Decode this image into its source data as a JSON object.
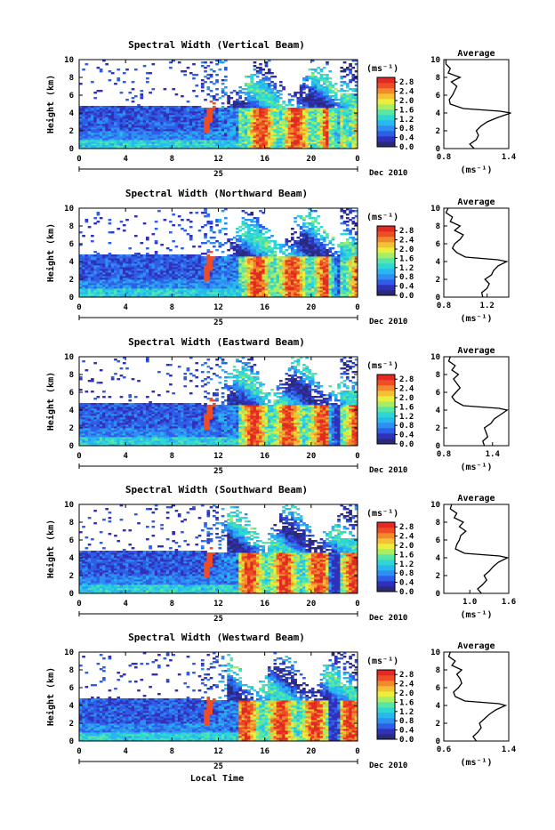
{
  "figure": {
    "colors": {
      "background": "#ffffff",
      "missing": "#ffffff",
      "colorbar": [
        "#2a2a7a",
        "#3030b8",
        "#2e5ee8",
        "#2f8ef2",
        "#28b7ee",
        "#2fd7d4",
        "#58e6a7",
        "#a7ee64",
        "#e8ef3c",
        "#f4c135",
        "#f28a2c",
        "#ee4d26",
        "#e02a22"
      ]
    },
    "xlabel": "Local Time",
    "date_suffix": "Dec 2010",
    "day_label": "25",
    "units_label": "(ms⁻¹)",
    "average_title": "Average",
    "average_xlabel": "(ms⁻¹)"
  },
  "chart_data": [
    {
      "type": "heatmap",
      "beam": "vertical",
      "title": "Spectral Width (Vertical Beam)",
      "ylabel": "Height (km)",
      "xlim": [
        0,
        24
      ],
      "ylim": [
        0,
        10
      ],
      "x_ticks": [
        "0",
        "4",
        "8",
        "12",
        "16",
        "20",
        "0"
      ],
      "y_ticks": [
        "0",
        "2",
        "4",
        "6",
        "8",
        "10"
      ],
      "colorbar_ticks": [
        "0.0",
        "0.4",
        "0.8",
        "1.2",
        "1.6",
        "2.0",
        "2.4",
        "2.8"
      ],
      "colorbar_range": [
        0,
        3.0
      ],
      "average_profile": {
        "title": "Average",
        "xlabel": "(ms⁻¹)",
        "xlim": [
          0.8,
          1.4
        ],
        "x_ticks": [
          "0.8",
          "1.4"
        ],
        "height_km": [
          0,
          0.5,
          1,
          1.5,
          2,
          2.5,
          3,
          3.5,
          4,
          4.2,
          4.5,
          5,
          5.5,
          6,
          6.5,
          7,
          7.5,
          8,
          8.5,
          9,
          9.5,
          10
        ],
        "value": [
          1.08,
          1.04,
          1.1,
          1.12,
          1.1,
          1.14,
          1.2,
          1.3,
          1.42,
          1.32,
          0.98,
          0.86,
          0.85,
          0.88,
          0.9,
          0.92,
          0.87,
          0.95,
          0.84,
          0.86,
          0.82,
          0.82
        ]
      }
    },
    {
      "type": "heatmap",
      "beam": "northward",
      "title": "Spectral Width (Northward Beam)",
      "ylabel": "Height (km)",
      "xlim": [
        0,
        24
      ],
      "ylim": [
        0,
        10
      ],
      "x_ticks": [
        "0",
        "4",
        "8",
        "12",
        "16",
        "20",
        "0"
      ],
      "y_ticks": [
        "0",
        "2",
        "4",
        "6",
        "8",
        "10"
      ],
      "colorbar_ticks": [
        "0.0",
        "0.4",
        "0.8",
        "1.2",
        "1.6",
        "2.0",
        "2.4",
        "2.8"
      ],
      "colorbar_range": [
        0,
        3.0
      ],
      "average_profile": {
        "title": "Average",
        "xlabel": "(ms⁻¹)",
        "xlim": [
          0.8,
          1.4
        ],
        "x_ticks": [
          "0.8",
          "1.2"
        ],
        "height_km": [
          0,
          0.5,
          1,
          1.5,
          2,
          2.5,
          3,
          3.5,
          4,
          4.2,
          4.5,
          5,
          5.5,
          6,
          6.5,
          7,
          7.5,
          8,
          8.5,
          9,
          9.5,
          10
        ],
        "value": [
          1.16,
          1.15,
          1.2,
          1.22,
          1.18,
          1.24,
          1.26,
          1.3,
          1.38,
          1.3,
          1.0,
          0.92,
          0.88,
          0.9,
          0.95,
          0.98,
          0.9,
          0.95,
          0.86,
          0.88,
          0.82,
          0.84
        ]
      }
    },
    {
      "type": "heatmap",
      "beam": "eastward",
      "title": "Spectral Width (Eastward Beam)",
      "ylabel": "Height (km)",
      "xlim": [
        0,
        24
      ],
      "ylim": [
        0,
        10
      ],
      "x_ticks": [
        "0",
        "4",
        "8",
        "12",
        "16",
        "20",
        "0"
      ],
      "y_ticks": [
        "0",
        "2",
        "4",
        "6",
        "8",
        "10"
      ],
      "colorbar_ticks": [
        "0.0",
        "0.4",
        "0.8",
        "1.2",
        "1.6",
        "2.0",
        "2.4",
        "2.8"
      ],
      "colorbar_range": [
        0,
        3.0
      ],
      "average_profile": {
        "title": "Average",
        "xlabel": "(ms⁻¹)",
        "xlim": [
          0.8,
          1.6
        ],
        "x_ticks": [
          "0.8",
          "1.4"
        ],
        "height_km": [
          0,
          0.5,
          1,
          1.5,
          2,
          2.5,
          3,
          3.5,
          4,
          4.2,
          4.5,
          5,
          5.5,
          6,
          6.5,
          7,
          7.5,
          8,
          8.5,
          9,
          9.5,
          10
        ],
        "value": [
          1.3,
          1.28,
          1.34,
          1.32,
          1.3,
          1.38,
          1.42,
          1.5,
          1.58,
          1.48,
          1.04,
          0.94,
          0.9,
          0.95,
          1.0,
          0.96,
          0.92,
          0.98,
          0.9,
          0.94,
          0.86,
          0.88
        ]
      }
    },
    {
      "type": "heatmap",
      "beam": "southward",
      "title": "Spectral Width (Southward Beam)",
      "ylabel": "Height (km)",
      "xlim": [
        0,
        24
      ],
      "ylim": [
        0,
        10
      ],
      "x_ticks": [
        "0",
        "4",
        "8",
        "12",
        "16",
        "20",
        "0"
      ],
      "y_ticks": [
        "0",
        "2",
        "4",
        "6",
        "8",
        "10"
      ],
      "colorbar_ticks": [
        "0.0",
        "0.4",
        "0.8",
        "1.2",
        "1.6",
        "2.0",
        "2.4",
        "2.8"
      ],
      "colorbar_range": [
        0,
        3.0
      ],
      "average_profile": {
        "title": "Average",
        "xlabel": "(ms⁻¹)",
        "xlim": [
          0.6,
          1.6
        ],
        "x_ticks": [
          "1.0",
          "1.6"
        ],
        "height_km": [
          0,
          0.5,
          1,
          1.5,
          2,
          2.5,
          3,
          3.5,
          4,
          4.2,
          4.5,
          5,
          5.5,
          6,
          6.5,
          7,
          7.5,
          8,
          8.5,
          9,
          9.5,
          10
        ],
        "value": [
          1.18,
          1.12,
          1.2,
          1.26,
          1.22,
          1.3,
          1.36,
          1.44,
          1.58,
          1.46,
          0.92,
          0.78,
          0.8,
          0.84,
          0.86,
          0.94,
          0.84,
          0.9,
          0.76,
          0.8,
          0.7,
          0.72
        ]
      }
    },
    {
      "type": "heatmap",
      "beam": "westward",
      "title": "Spectral Width (Westward Beam)",
      "ylabel": "Height (km)",
      "xlim": [
        0,
        24
      ],
      "ylim": [
        0,
        10
      ],
      "x_ticks": [
        "0",
        "4",
        "8",
        "12",
        "16",
        "20",
        "0"
      ],
      "y_ticks": [
        "0",
        "2",
        "4",
        "6",
        "8",
        "10"
      ],
      "colorbar_ticks": [
        "0.0",
        "0.4",
        "0.8",
        "1.2",
        "1.6",
        "2.0",
        "2.4",
        "2.8"
      ],
      "colorbar_range": [
        0,
        3.0
      ],
      "average_profile": {
        "title": "Average",
        "xlabel": "(ms⁻¹)",
        "xlim": [
          0.6,
          1.4
        ],
        "x_ticks": [
          "0.6",
          "1.4"
        ],
        "height_km": [
          0,
          0.5,
          1,
          1.5,
          2,
          2.5,
          3,
          3.5,
          4,
          4.2,
          4.5,
          5,
          5.5,
          6,
          6.5,
          7,
          7.5,
          8,
          8.5,
          9,
          9.5,
          10
        ],
        "value": [
          1.0,
          0.96,
          1.02,
          1.06,
          1.04,
          1.1,
          1.16,
          1.24,
          1.36,
          1.28,
          0.86,
          0.74,
          0.72,
          0.78,
          0.82,
          0.8,
          0.76,
          0.82,
          0.7,
          0.74,
          0.66,
          0.68
        ]
      }
    }
  ]
}
